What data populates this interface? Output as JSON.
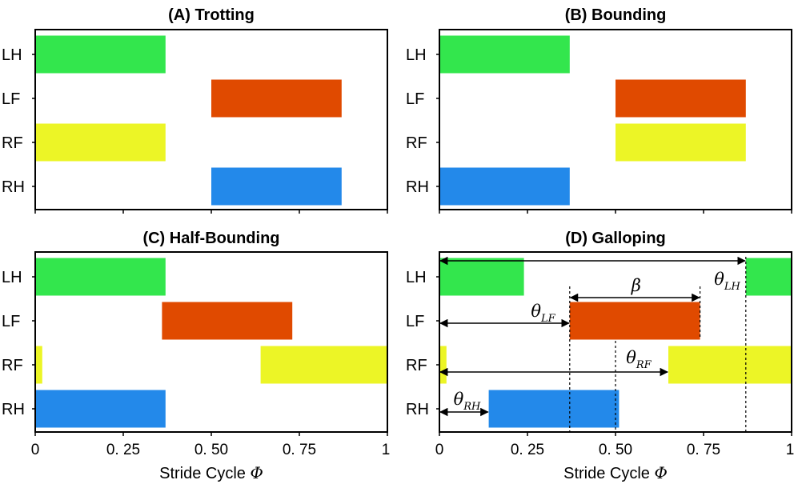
{
  "chart_data": [
    {
      "type": "bar",
      "orientation": "horizontal-gantt",
      "title": "(A) Trotting",
      "categories": [
        "LH",
        "LF",
        "RF",
        "RH"
      ],
      "xlim": [
        0,
        1
      ],
      "xticks": [
        "0",
        "0. 25",
        "0. 50",
        "0. 75",
        "1"
      ],
      "show_xtick_labels": false,
      "xlabel": "",
      "bars": [
        {
          "leg": "LH",
          "start": 0.0,
          "end": 0.37,
          "color": "#33e64d"
        },
        {
          "leg": "LF",
          "start": 0.5,
          "end": 0.87,
          "color": "#e04a00"
        },
        {
          "leg": "RF",
          "start": 0.0,
          "end": 0.37,
          "color": "#ecf526"
        },
        {
          "leg": "RH",
          "start": 0.5,
          "end": 0.87,
          "color": "#2389ea"
        }
      ]
    },
    {
      "type": "bar",
      "orientation": "horizontal-gantt",
      "title": "(B) Bounding",
      "categories": [
        "LH",
        "LF",
        "RF",
        "RH"
      ],
      "xlim": [
        0,
        1
      ],
      "xticks": [
        "0",
        "0. 25",
        "0. 50",
        "0. 75",
        "1"
      ],
      "show_xtick_labels": false,
      "xlabel": "",
      "bars": [
        {
          "leg": "LH",
          "start": 0.0,
          "end": 0.37,
          "color": "#33e64d"
        },
        {
          "leg": "LF",
          "start": 0.5,
          "end": 0.87,
          "color": "#e04a00"
        },
        {
          "leg": "RF",
          "start": 0.5,
          "end": 0.87,
          "color": "#ecf526"
        },
        {
          "leg": "RH",
          "start": 0.0,
          "end": 0.37,
          "color": "#2389ea"
        }
      ]
    },
    {
      "type": "bar",
      "orientation": "horizontal-gantt",
      "title": "(C) Half-Bounding",
      "categories": [
        "LH",
        "LF",
        "RF",
        "RH"
      ],
      "xlim": [
        0,
        1
      ],
      "xticks": [
        "0",
        "0. 25",
        "0. 50",
        "0. 75",
        "1"
      ],
      "show_xtick_labels": true,
      "xlabel": "Stride Cycle",
      "xlabel_symbol": "Φ",
      "bars": [
        {
          "leg": "LH",
          "start": 0.0,
          "end": 0.37,
          "color": "#33e64d"
        },
        {
          "leg": "LF",
          "start": 0.36,
          "end": 0.73,
          "color": "#e04a00"
        },
        {
          "leg": "RF",
          "start": 0.0,
          "end": 0.02,
          "color": "#ecf526"
        },
        {
          "leg": "RF",
          "start": 0.64,
          "end": 1.0,
          "color": "#ecf526"
        },
        {
          "leg": "RH",
          "start": 0.0,
          "end": 0.37,
          "color": "#2389ea"
        }
      ]
    },
    {
      "type": "bar",
      "orientation": "horizontal-gantt",
      "title": "(D) Galloping",
      "categories": [
        "LH",
        "LF",
        "RF",
        "RH"
      ],
      "xlim": [
        0,
        1
      ],
      "xticks": [
        "0",
        "0. 25",
        "0. 50",
        "0. 75",
        "1"
      ],
      "show_xtick_labels": true,
      "xlabel": "Stride Cycle",
      "xlabel_symbol": "Φ",
      "bars": [
        {
          "leg": "LH",
          "start": 0.0,
          "end": 0.24,
          "color": "#33e64d"
        },
        {
          "leg": "LH",
          "start": 0.87,
          "end": 1.0,
          "color": "#33e64d"
        },
        {
          "leg": "LF",
          "start": 0.37,
          "end": 0.74,
          "color": "#e04a00"
        },
        {
          "leg": "RF",
          "start": 0.0,
          "end": 0.02,
          "color": "#ecf526"
        },
        {
          "leg": "RF",
          "start": 0.65,
          "end": 1.0,
          "color": "#ecf526"
        },
        {
          "leg": "RH",
          "start": 0.14,
          "end": 0.51,
          "color": "#2389ea"
        }
      ],
      "annotations": [
        {
          "symbol": "θ",
          "sub": "LH",
          "from": 0.0,
          "to": 0.87,
          "row": "LH"
        },
        {
          "symbol": "β",
          "sub": "",
          "from": 0.37,
          "to": 0.74,
          "row": "LH-LF"
        },
        {
          "symbol": "θ",
          "sub": "LF",
          "from": 0.0,
          "to": 0.37,
          "row": "LF"
        },
        {
          "symbol": "θ",
          "sub": "RF",
          "from": 0.0,
          "to": 0.65,
          "row": "RF"
        },
        {
          "symbol": "θ",
          "sub": "RH",
          "from": 0.0,
          "to": 0.14,
          "row": "RH"
        }
      ],
      "dashed_markers": [
        0.0,
        0.37,
        0.5,
        0.74,
        0.87
      ]
    }
  ]
}
